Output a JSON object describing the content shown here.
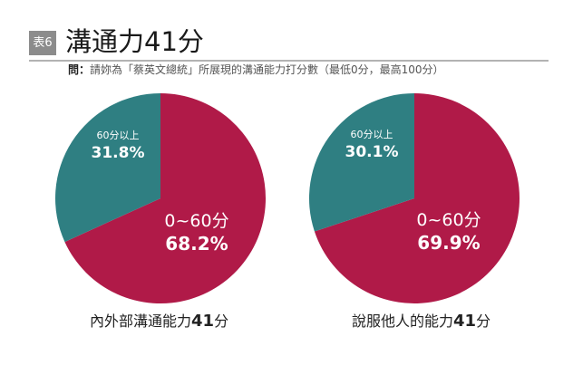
{
  "header": {
    "badge": "表6",
    "title": "溝通力41分",
    "question_label": "問：",
    "question_text": "請妳為「蔡英文總統」所展現的溝通能力打分數（最低0分，最高100分）"
  },
  "colors": {
    "low_segment": "#b01a48",
    "high_segment": "#2f7f82",
    "badge_bg": "#8c8c8c",
    "rule": "#b3b3b3"
  },
  "charts": [
    {
      "caption_prefix": "內外部溝通能力",
      "caption_score": "41",
      "caption_suffix": "分",
      "segments": [
        {
          "label": "0~60分",
          "value_text": "68.2%"
        },
        {
          "label": "60分以上",
          "value_text": "31.8%"
        }
      ]
    },
    {
      "caption_prefix": "說服他人的能力",
      "caption_score": "41",
      "caption_suffix": "分",
      "segments": [
        {
          "label": "0~60分",
          "value_text": "69.9%"
        },
        {
          "label": "60分以上",
          "value_text": "30.1%"
        }
      ]
    }
  ],
  "chart_data": [
    {
      "type": "pie",
      "title": "內外部溝通能力41分",
      "categories": [
        "0~60分",
        "60分以上"
      ],
      "values": [
        68.2,
        31.8
      ],
      "colors": [
        "#b01a48",
        "#2f7f82"
      ]
    },
    {
      "type": "pie",
      "title": "說服他人的能力41分",
      "categories": [
        "0~60分",
        "60分以上"
      ],
      "values": [
        69.9,
        30.1
      ],
      "colors": [
        "#b01a48",
        "#2f7f82"
      ]
    }
  ]
}
